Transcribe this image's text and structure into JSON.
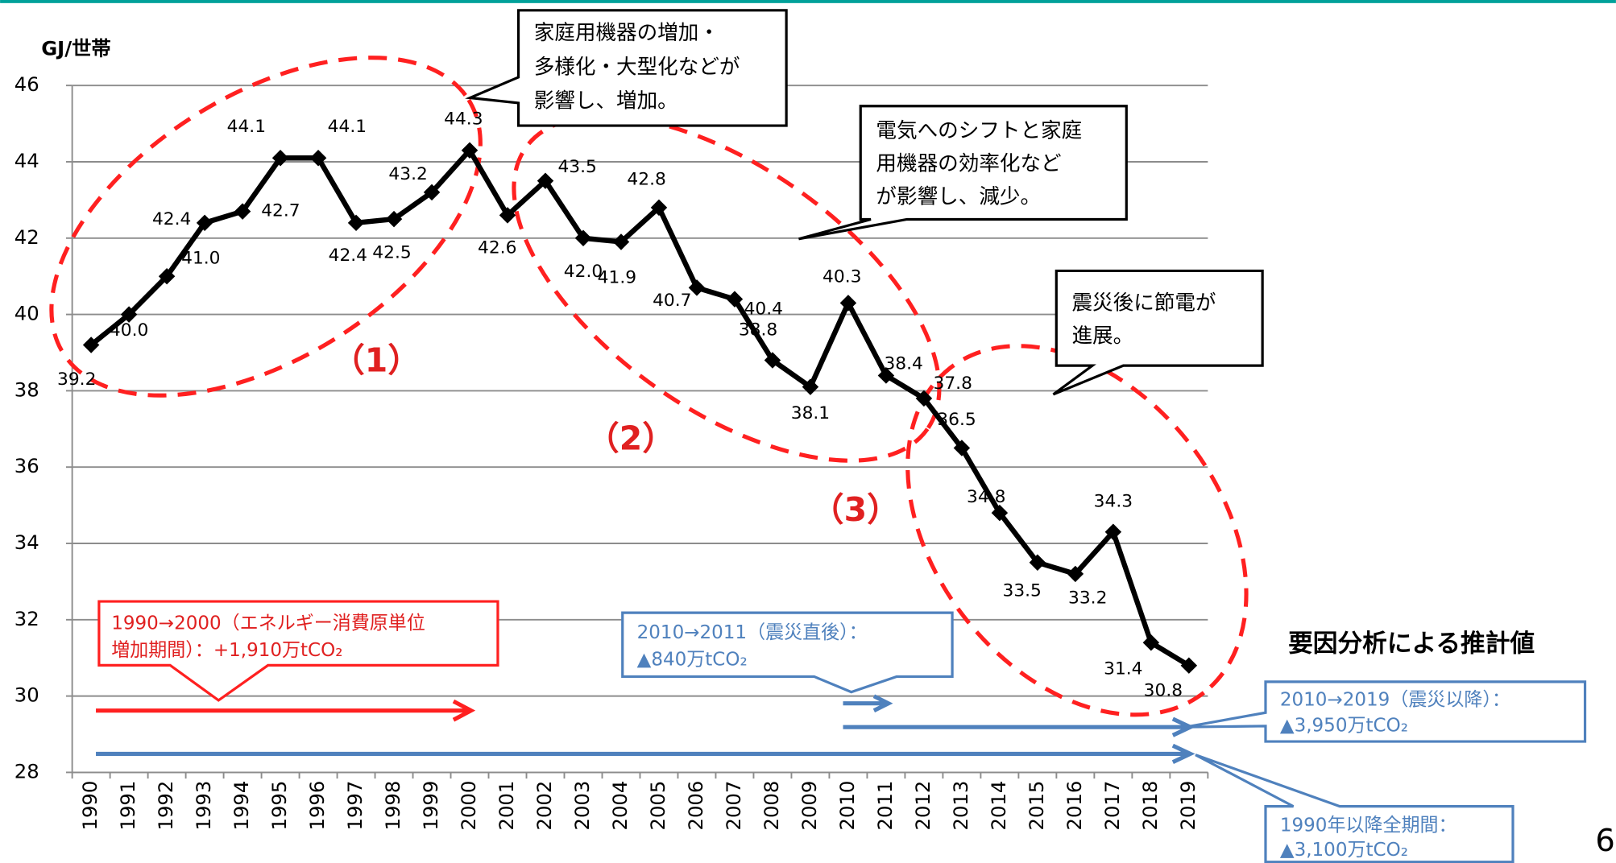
{
  "chart_data": {
    "type": "line",
    "y_label": "GJ/世帯",
    "categories": [
      "1990",
      "1991",
      "1992",
      "1993",
      "1994",
      "1995",
      "1996",
      "1997",
      "1998",
      "1999",
      "2000",
      "2001",
      "2002",
      "2003",
      "2004",
      "2005",
      "2006",
      "2007",
      "2008",
      "2009",
      "2010",
      "2011",
      "2012",
      "2013",
      "2014",
      "2015",
      "2016",
      "2017",
      "2018",
      "2019"
    ],
    "values": [
      39.2,
      40.0,
      41.0,
      42.4,
      42.7,
      44.1,
      44.1,
      42.4,
      42.5,
      43.2,
      44.3,
      42.6,
      43.5,
      42.0,
      41.9,
      42.8,
      40.7,
      40.4,
      38.8,
      38.1,
      40.3,
      38.4,
      37.8,
      36.5,
      34.8,
      33.5,
      33.2,
      34.3,
      31.4,
      30.8
    ],
    "value_labels": [
      "39.2",
      "40.0",
      "41.0",
      "42.4",
      "42.7",
      "44.1",
      "44.1",
      "42.4",
      "42.5",
      "43.2",
      "44.3",
      "42.6",
      "43.5",
      "42.0",
      "41.9",
      "42.8",
      "40.7",
      "40.4",
      "38.8",
      "38.1",
      "40.3",
      "38.4",
      "37.8",
      "36.5",
      "34.8",
      "33.5",
      "33.2",
      "34.3",
      "31.4",
      "30.8"
    ],
    "color": "#000000",
    "ylim": [
      28,
      46
    ],
    "yticks": [
      28,
      30,
      32,
      34,
      36,
      38,
      40,
      42,
      44,
      46
    ],
    "grid": true,
    "annotations": {
      "callout1": [
        "家庭用機器の増加・",
        "多様化・大型化などが",
        "影響し、増加。"
      ],
      "callout2": [
        "電気へのシフトと家庭",
        "用機器の効率化など",
        "が影響し、減少。"
      ],
      "callout3": [
        "震災後に節電が",
        "進展。"
      ],
      "periods": [
        "（1）",
        "（2）",
        "（3）"
      ],
      "period_1990_2000": [
        "1990→2000（エネルギー消費原単位",
        "増加期間）：+1,910万tCO₂"
      ],
      "period_2010_2011": [
        "2010→2011（震災直後）：",
        "▲840万tCO₂"
      ],
      "period_2010_2019": [
        "2010→2019（震災以降）：",
        "▲3,950万tCO₂"
      ],
      "period_all": [
        "1990年以降全期間：",
        "▲3,100万tCO₂"
      ],
      "estimate_heading": "要因分析による推計値"
    },
    "page_number": "6"
  }
}
